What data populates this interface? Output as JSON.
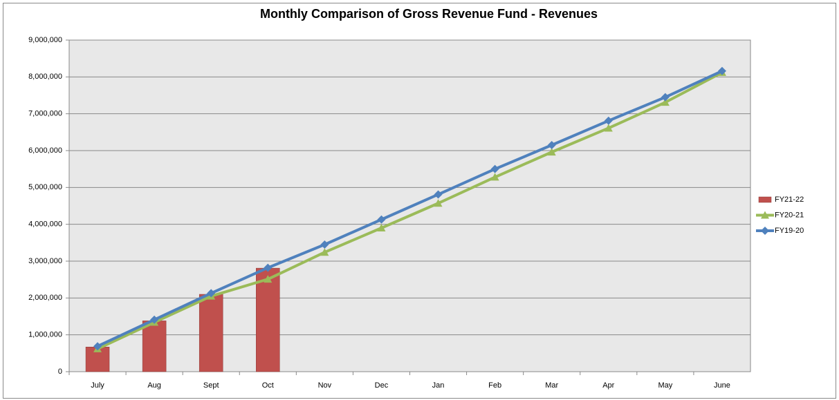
{
  "chart_data": {
    "type": "bar",
    "title": "Monthly Comparison of Gross Revenue Fund - Revenues",
    "categories": [
      "July",
      "Aug",
      "Sept",
      "Oct",
      "Nov",
      "Dec",
      "Jan",
      "Feb",
      "Mar",
      "Apr",
      "May",
      "June"
    ],
    "series": [
      {
        "name": "FY21-22",
        "type": "bar",
        "color": "#c0504d",
        "values": [
          670000,
          1380000,
          2100000,
          2810000,
          null,
          null,
          null,
          null,
          null,
          null,
          null,
          null
        ]
      },
      {
        "name": "FY20-21",
        "type": "line",
        "marker": "triangle",
        "color": "#9bbb59",
        "values": [
          620000,
          1340000,
          2050000,
          2510000,
          3240000,
          3900000,
          4570000,
          5280000,
          5960000,
          6610000,
          7310000,
          8120000
        ]
      },
      {
        "name": "FY19-20",
        "type": "line",
        "marker": "diamond",
        "color": "#4f81bd",
        "values": [
          690000,
          1410000,
          2130000,
          2820000,
          3450000,
          4130000,
          4810000,
          5500000,
          6150000,
          6810000,
          7450000,
          8160000
        ]
      }
    ],
    "ylim": [
      0,
      9000000
    ],
    "yticks": [
      0,
      {
        "value": 1000000,
        "label": "1,000,000"
      },
      {
        "value": 2000000,
        "label": "2,000,000"
      },
      {
        "value": 3000000,
        "label": "3,000,000"
      },
      {
        "value": 4000000,
        "label": "4,000,000"
      },
      {
        "value": 5000000,
        "label": "5,000,000"
      },
      {
        "value": 6000000,
        "label": "6,000,000"
      },
      {
        "value": 7000000,
        "label": "7,000,000"
      },
      {
        "value": 8000000,
        "label": "8,000,000"
      },
      {
        "value": 9000000,
        "label": "9,000,000"
      }
    ],
    "grid": true,
    "legend": "right"
  }
}
